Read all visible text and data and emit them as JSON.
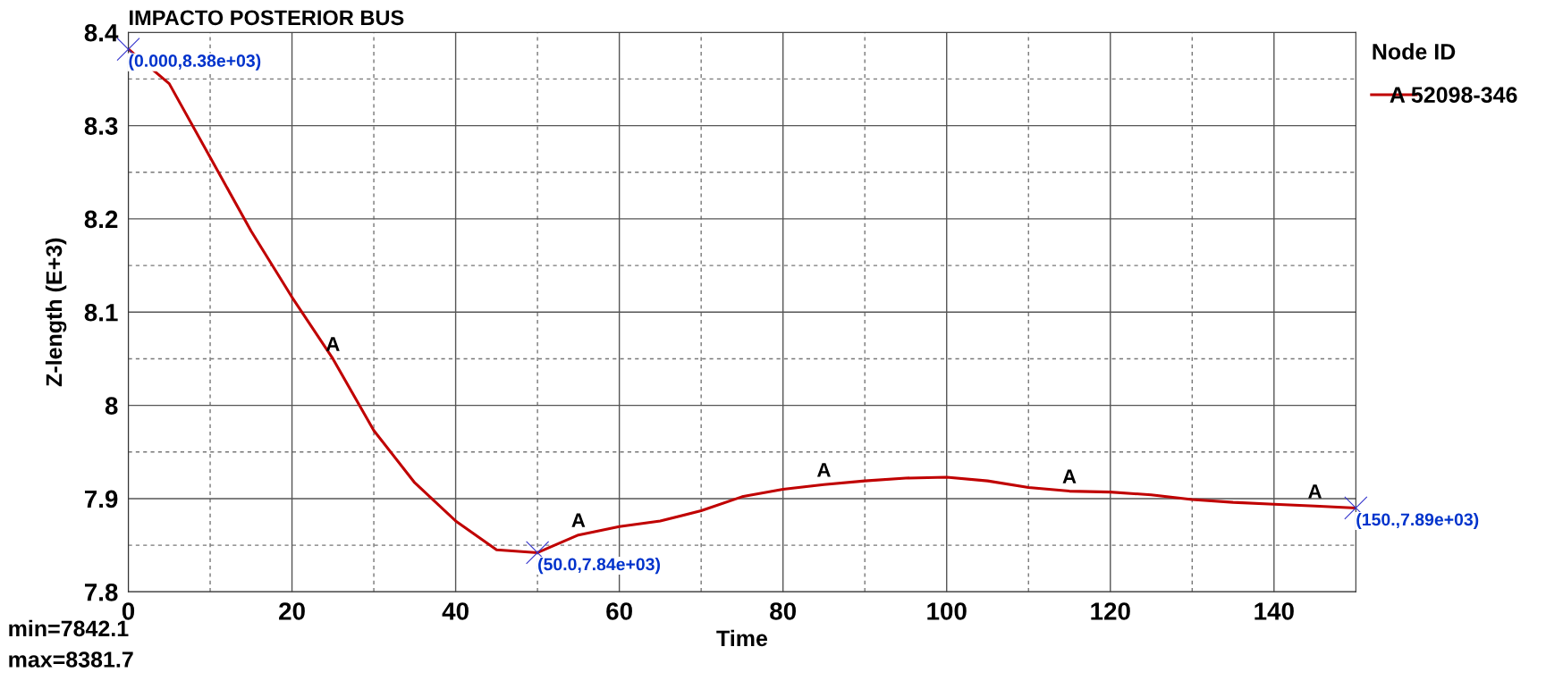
{
  "chart_data": {
    "type": "line",
    "title": "IMPACTO POSTERIOR BUS",
    "xlabel": "Time",
    "ylabel": "Z-length (E+3)",
    "legend_title": "Node ID",
    "x": [
      0,
      5,
      10,
      15,
      20,
      25,
      30,
      35,
      40,
      45,
      50,
      55,
      60,
      65,
      70,
      75,
      80,
      85,
      90,
      95,
      100,
      105,
      110,
      115,
      120,
      125,
      130,
      135,
      140,
      145,
      150
    ],
    "series": [
      {
        "name": "A 52098-346",
        "color": "#c00000",
        "values": [
          8.382,
          8.345,
          8.266,
          8.187,
          8.116,
          8.05,
          7.973,
          7.917,
          7.876,
          7.845,
          7.842,
          7.861,
          7.87,
          7.876,
          7.887,
          7.902,
          7.91,
          7.915,
          7.919,
          7.922,
          7.923,
          7.919,
          7.912,
          7.908,
          7.907,
          7.904,
          7.899,
          7.896,
          7.894,
          7.892,
          7.89
        ]
      }
    ],
    "xlim": [
      0,
      150
    ],
    "ylim": [
      7.8,
      8.4
    ],
    "xticks": [
      0,
      20,
      40,
      60,
      80,
      100,
      120,
      140
    ],
    "yticks": [
      {
        "value": 7.8,
        "label": "7.8"
      },
      {
        "value": 7.9,
        "label": "7.9"
      },
      {
        "value": 8.0,
        "label": "8"
      },
      {
        "value": 8.1,
        "label": "8.1"
      },
      {
        "value": 8.2,
        "label": "8.2"
      },
      {
        "value": 8.3,
        "label": "8.3"
      },
      {
        "value": 8.4,
        "label": "8.4"
      }
    ],
    "grid": true,
    "legend": "right",
    "line_style": "solid",
    "annotations": [
      {
        "text": "(0.000,8.38e+03)",
        "x": 0,
        "y": 8.382
      },
      {
        "text": "(50.0,7.84e+03)",
        "x": 50,
        "y": 7.842
      },
      {
        "text": "(150.,7.89e+03)",
        "x": 150,
        "y": 7.89
      },
      {
        "text": "A",
        "x": 25,
        "y": 8.05
      },
      {
        "text": "A",
        "x": 55,
        "y": 7.861
      },
      {
        "text": "A",
        "x": 85,
        "y": 7.915
      },
      {
        "text": "A",
        "x": 115,
        "y": 7.908
      },
      {
        "text": "A",
        "x": 145,
        "y": 7.892
      },
      "min=7842.1",
      "max=8381.7"
    ]
  }
}
